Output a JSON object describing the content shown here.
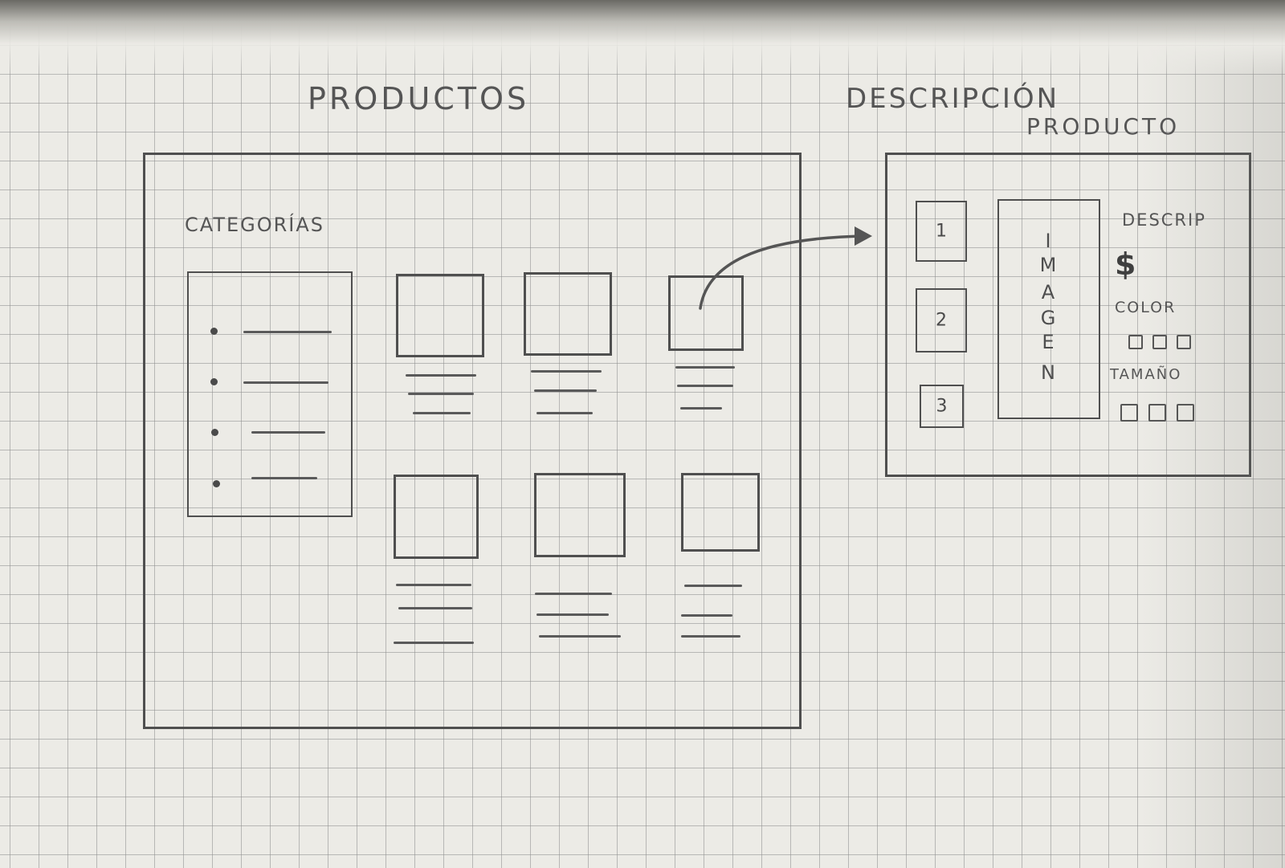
{
  "left_panel": {
    "title": "PRODUCTOS",
    "sidebar": {
      "heading": "CATEGORÍAS",
      "bullet_count": 4
    },
    "product_cards": 6
  },
  "right_panel": {
    "title_line1": "DESCRIPCIÓN",
    "title_line2": "PRODUCTO",
    "thumbnails": [
      "1",
      "2",
      "3"
    ],
    "image_label": [
      "I",
      "M",
      "A",
      "G",
      "E",
      "N"
    ],
    "description_label": "DESCRIP",
    "price_symbol": "$",
    "color_label": "COLOR",
    "size_label": "TAMAÑO"
  },
  "colors": {
    "paper": "#ecebe6",
    "grid": "#8c8c8c",
    "pencil": "#4f4f4f"
  }
}
